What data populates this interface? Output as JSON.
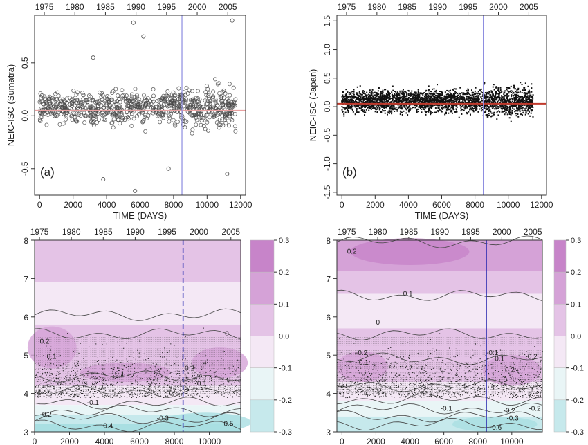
{
  "chart_data": [
    {
      "id": "a",
      "type": "scatter",
      "panel_label": "(a)",
      "xlabel": "TIME (DAYS)",
      "ylabel": "NEIC-ISC (Sumatra)",
      "xlim": [
        -300,
        12300
      ],
      "ylim": [
        -0.75,
        0.95
      ],
      "xticks": [
        0,
        2000,
        4000,
        6000,
        8000,
        10000,
        12000
      ],
      "yticks": [
        -0.5,
        0.0,
        0.5
      ],
      "ytick_labels": [
        "-0.5",
        "0.0",
        "0.5"
      ],
      "top_axis": {
        "ticks": [
          1975,
          1980,
          1985,
          1990,
          1995,
          2000,
          2005
        ],
        "tick_days": [
          280,
          2106,
          3932,
          5758,
          7584,
          9410,
          11236
        ]
      },
      "reference_line_y": 0.05,
      "vertical_line_x": 8500,
      "marker": "open-circle",
      "point_count_note": "dense scatter, values mostly between -0.3 and 0.5",
      "series": [
        {
          "x_range": [
            0,
            11700
          ],
          "y_center": 0.08,
          "y_spread": 0.18,
          "n": 780,
          "upper_outliers": [
            [
              3200,
              0.55
            ],
            [
              5600,
              0.88
            ],
            [
              6200,
              0.75
            ],
            [
              11500,
              0.9
            ]
          ],
          "lower_outliers": [
            [
              3800,
              -0.6
            ],
            [
              5700,
              -0.71
            ],
            [
              7700,
              -0.5
            ],
            [
              11200,
              -0.55
            ]
          ]
        }
      ]
    },
    {
      "id": "b",
      "type": "scatter",
      "panel_label": "(b)",
      "xlabel": "TIME (DAYS)",
      "ylabel": "NEIC-ISC (Japan)",
      "xlim": [
        -300,
        12300
      ],
      "ylim": [
        -1.55,
        1.6
      ],
      "xticks": [
        0,
        2000,
        4000,
        6000,
        8000,
        10000,
        12000
      ],
      "yticks": [
        -1.5,
        -1.0,
        -0.5,
        0.0,
        0.5,
        1.0,
        1.5
      ],
      "ytick_labels": [
        "-1.5",
        "-1.0",
        "-0.5",
        "0.0",
        "0.5",
        "1.0",
        "1.5"
      ],
      "top_axis": {
        "ticks": [
          1975,
          1980,
          1985,
          1990,
          1995,
          2000,
          2005
        ],
        "tick_days": [
          280,
          2106,
          3932,
          5758,
          7584,
          9410,
          11236
        ]
      },
      "reference_line_y": 0.05,
      "vertical_line_x": 8500,
      "marker": "filled-dot",
      "series": [
        {
          "x_range": [
            0,
            11500
          ],
          "y_center": 0.1,
          "y_spread": 0.22,
          "n": 2800
        }
      ]
    },
    {
      "id": "c",
      "type": "heatmap",
      "xlim": [
        0,
        11800
      ],
      "ylim": [
        3,
        8
      ],
      "xticks": [
        0,
        2000,
        4000,
        6000,
        8000,
        10000
      ],
      "yticks": [
        3,
        4,
        5,
        6,
        7,
        8
      ],
      "top_axis": {
        "ticks": [
          1975,
          1980,
          1985,
          1990,
          1995,
          2000,
          2005
        ],
        "tick_days": [
          280,
          2106,
          3932,
          5758,
          7584,
          9410,
          11236
        ]
      },
      "vertical_line_x": 8500,
      "vertical_line_style": "dashed",
      "colorbar": {
        "levels": [
          0.3,
          0.2,
          0.1,
          0.0,
          -0.1,
          -0.2,
          -0.3
        ],
        "labels": [
          "0.3",
          "0.2",
          "0.1",
          "0.0",
          "-0.1",
          "-0.2",
          "-0.3"
        ]
      },
      "contour_labels": [
        "0.2",
        "0.1",
        "0",
        "0.1",
        "0.2",
        "0.1",
        "0",
        "-0.1",
        "-0.2",
        "-0.3",
        "-0.4",
        "-0.5",
        "0"
      ]
    },
    {
      "id": "d",
      "type": "heatmap",
      "xlim": [
        -300,
        11800
      ],
      "ylim": [
        3,
        8
      ],
      "xticks": [
        0,
        2000,
        4000,
        6000,
        8000,
        10000
      ],
      "yticks": [
        3,
        4,
        5,
        6,
        7,
        8
      ],
      "top_axis": {
        "ticks": [
          1975,
          1980,
          1985,
          1990,
          1995,
          2000,
          2005
        ],
        "tick_days": [
          280,
          2106,
          3932,
          5758,
          7584,
          9410,
          11236
        ]
      },
      "vertical_line_x": 8500,
      "vertical_line_style": "solid",
      "colorbar": {
        "levels": [
          0.3,
          0.2,
          0.1,
          0.0,
          -0.1,
          -0.2,
          -0.3
        ],
        "labels": [
          "0.3",
          "0.2",
          "0.1",
          "0.0",
          "-0.1",
          "-0.2",
          "-0.3"
        ]
      },
      "contour_labels": [
        "0.2",
        "0.1",
        "0",
        "-0.1",
        "0.2",
        "0.1",
        "-0.2",
        "0",
        "-0.1",
        "-0.2",
        "-0.3",
        "-0.6",
        "-0.2",
        "-0.2",
        "0.1"
      ]
    }
  ],
  "colors": {
    "open_circle": "#4a4a4a",
    "filled_dot": "#111111",
    "reference_line": "#e8a0a0",
    "reference_line_b": "#c0392b",
    "vertical_line": "#8c8ce0",
    "vertical_line_dashed": "#3a3ab8",
    "scale_pos_3": "#c784c9",
    "scale_pos_2": "#d5a2d7",
    "scale_pos_1": "#e4c3e6",
    "scale_0": "#f4e8f5",
    "scale_neg_1": "#e9f5f6",
    "scale_neg_2": "#c6e9ec",
    "scale_neg_3": "#a9dfe2"
  }
}
